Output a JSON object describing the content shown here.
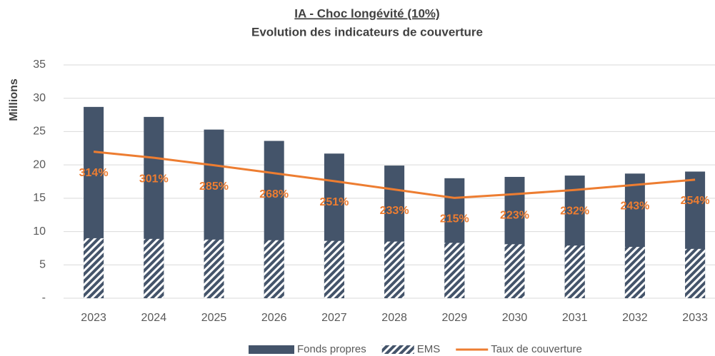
{
  "chart_data": {
    "type": "bar",
    "title": "IA - Choc longévité (10%)",
    "subtitle": "Evolution des indicateurs de couverture",
    "y_label": "Millions",
    "categories": [
      "2023",
      "2024",
      "2025",
      "2026",
      "2027",
      "2028",
      "2029",
      "2030",
      "2031",
      "2032",
      "2033"
    ],
    "series": [
      {
        "name": "Fonds propres",
        "type": "bar",
        "color": "#44546a",
        "values": [
          28.7,
          27.2,
          25.3,
          23.6,
          21.7,
          19.9,
          18.0,
          18.2,
          18.4,
          18.7,
          19.0
        ]
      },
      {
        "name": "EMS",
        "type": "bar",
        "color": "#44546a",
        "pattern": "hatch",
        "values": [
          9.0,
          8.9,
          8.8,
          8.7,
          8.6,
          8.5,
          8.3,
          8.1,
          7.9,
          7.7,
          7.4
        ]
      },
      {
        "name": "Taux de couverture",
        "type": "line",
        "axis": "y2",
        "color": "#ed7d31",
        "values": [
          314,
          301,
          285,
          268,
          251,
          233,
          215,
          223,
          232,
          243,
          254
        ],
        "value_labels": [
          "314%",
          "301%",
          "285%",
          "268%",
          "251%",
          "233%",
          "215%",
          "223%",
          "232%",
          "243%",
          "254%"
        ]
      }
    ],
    "ylim": [
      0,
      35
    ],
    "yticks": [
      {
        "value": 0,
        "label": "-"
      },
      5,
      10,
      15,
      20,
      25,
      30,
      35
    ],
    "y2lim": [
      0,
      500
    ],
    "grid": true,
    "legend": "bottom"
  }
}
